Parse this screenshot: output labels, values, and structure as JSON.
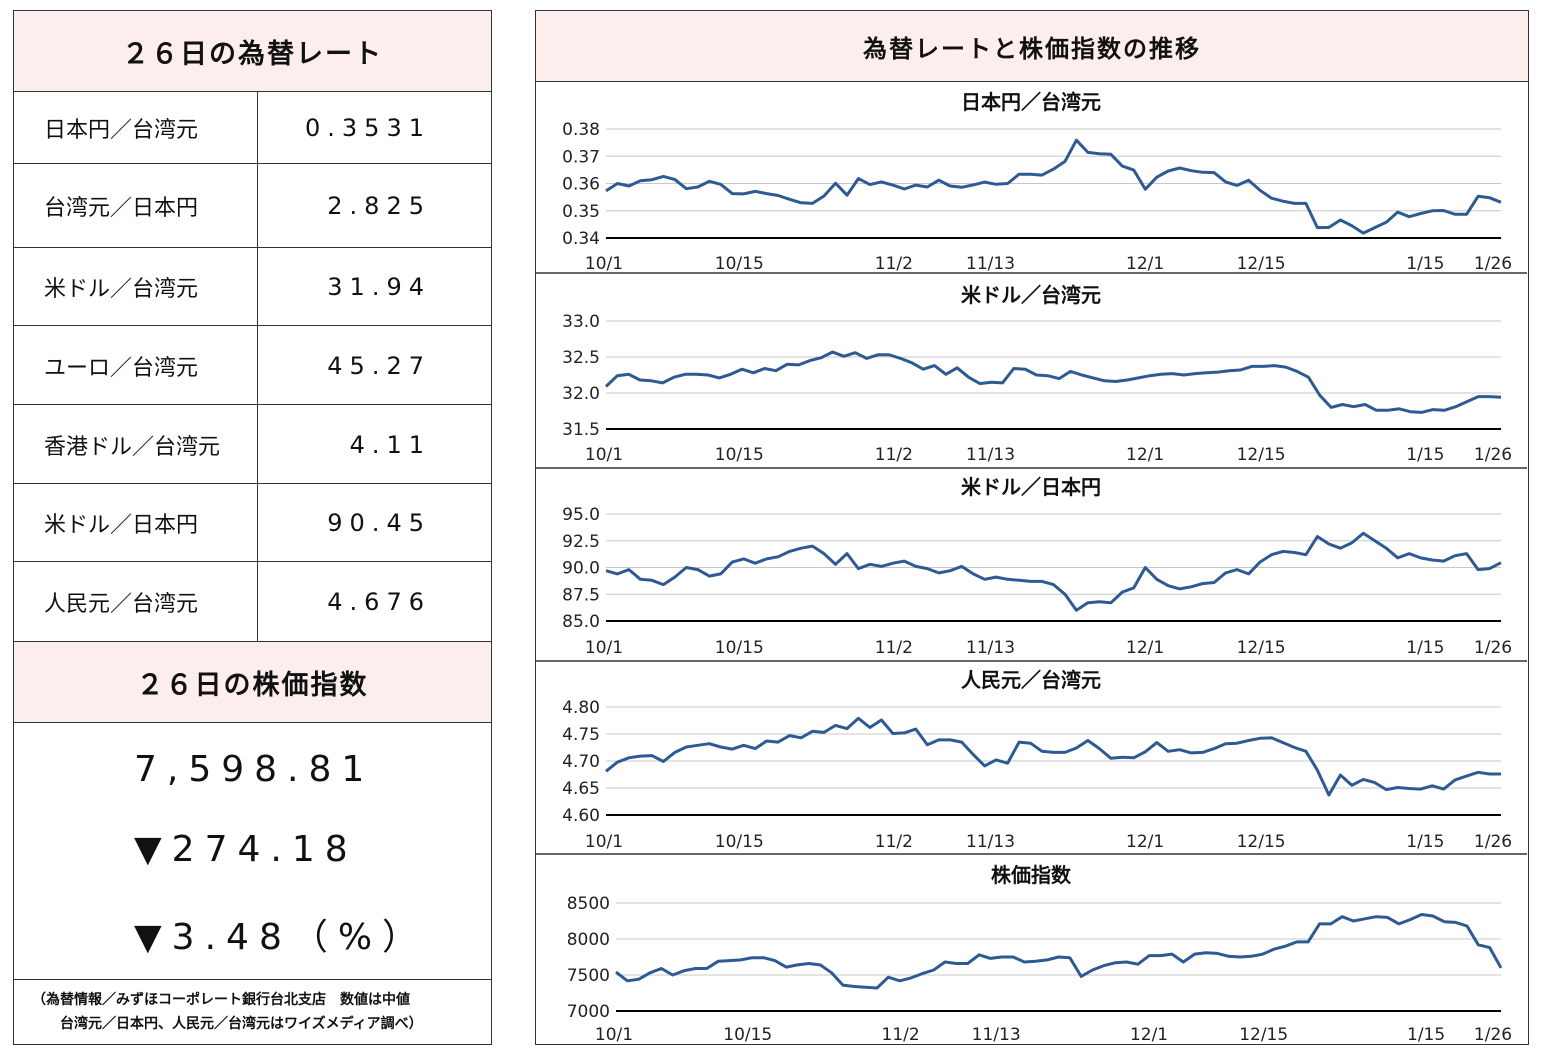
{
  "left": {
    "rates_title": "２６日の為替レート",
    "rates": [
      {
        "label": "日本円／台湾元",
        "value": "0.3531"
      },
      {
        "label": "台湾元／日本円",
        "value": "2.825"
      },
      {
        "label": "米ドル／台湾元",
        "value": "31.94"
      },
      {
        "label": "ユーロ／台湾元",
        "value": "45.27"
      },
      {
        "label": "香港ドル／台湾元",
        "value": "4.11"
      },
      {
        "label": "米ドル／日本円",
        "value": "90.45"
      },
      {
        "label": "人民元／台湾元",
        "value": "4.676"
      }
    ],
    "index_title": "２６日の株価指数",
    "index_value": "7,598.81",
    "index_change": "▼274.18",
    "index_change_pct": "▼3.48（%）",
    "note_line1": "（為替情報／みずほコーポレート銀行台北支店　数値は中値",
    "note_line2": "台湾元／日本円、人民元／台湾元はワイズメディア調べ）"
  },
  "right": {
    "title": "為替レートと株価指数の推移"
  },
  "colors": {
    "line": "#2e5a94",
    "header_bg": "#fdeeee",
    "grid": "#c8c8c8"
  },
  "chart_data": [
    {
      "type": "line",
      "title": "日本円／台湾元",
      "x_ticks": [
        "10/1",
        "10/15",
        "11/2",
        "11/13",
        "12/1",
        "12/15",
        "1/15",
        "1/26"
      ],
      "y_ticks": [
        "0.38",
        "0.37",
        "0.36",
        "0.35",
        "0.34"
      ],
      "ylim": [
        0.34,
        0.38
      ],
      "series": [
        {
          "values": [
            0.3573,
            0.36,
            0.3591,
            0.361,
            0.3614,
            0.3626,
            0.3615,
            0.3581,
            0.3587,
            0.3608,
            0.3597,
            0.3563,
            0.3562,
            0.3571,
            0.3563,
            0.3556,
            0.3542,
            0.3529,
            0.3527,
            0.3554,
            0.3601,
            0.3557,
            0.3618,
            0.3596,
            0.3606,
            0.3594,
            0.358,
            0.3594,
            0.3587,
            0.3612,
            0.3591,
            0.3586,
            0.3595,
            0.3605,
            0.3597,
            0.36,
            0.3634,
            0.3634,
            0.3631,
            0.3653,
            0.3681,
            0.3759,
            0.3714,
            0.3709,
            0.3707,
            0.3664,
            0.3649,
            0.3579,
            0.3623,
            0.3646,
            0.3657,
            0.3647,
            0.3641,
            0.364,
            0.3606,
            0.3593,
            0.3612,
            0.3575,
            0.3546,
            0.3535,
            0.3527,
            0.3527,
            0.3438,
            0.3439,
            0.3466,
            0.3445,
            0.3418,
            0.3438,
            0.3458,
            0.3495,
            0.3478,
            0.349,
            0.35,
            0.3501,
            0.3487,
            0.3487,
            0.3553,
            0.3548,
            0.3531
          ]
        }
      ]
    },
    {
      "type": "line",
      "title": "米ドル／台湾元",
      "x_ticks": [
        "10/1",
        "10/15",
        "11/2",
        "11/13",
        "12/1",
        "12/15",
        "1/15",
        "1/26"
      ],
      "y_ticks": [
        "33.0",
        "32.5",
        "32.0",
        "31.5"
      ],
      "ylim": [
        31.5,
        33.0
      ],
      "series": [
        {
          "values": [
            32.09,
            32.24,
            32.26,
            32.18,
            32.17,
            32.14,
            32.22,
            32.26,
            32.26,
            32.25,
            32.21,
            32.26,
            32.33,
            32.28,
            32.34,
            32.31,
            32.4,
            32.39,
            32.45,
            32.49,
            32.57,
            32.51,
            32.56,
            32.48,
            32.53,
            32.53,
            32.48,
            32.42,
            32.33,
            32.38,
            32.26,
            32.35,
            32.22,
            32.13,
            32.15,
            32.14,
            32.34,
            32.33,
            32.25,
            32.24,
            32.2,
            32.3,
            32.25,
            32.21,
            32.17,
            32.16,
            32.18,
            32.21,
            32.24,
            32.26,
            32.27,
            32.25,
            32.27,
            32.28,
            32.29,
            32.31,
            32.32,
            32.37,
            32.37,
            32.38,
            32.36,
            32.3,
            32.22,
            31.97,
            31.8,
            31.84,
            31.81,
            31.84,
            31.76,
            31.76,
            31.78,
            31.74,
            31.73,
            31.77,
            31.76,
            31.81,
            31.88,
            31.95,
            31.95,
            31.94
          ]
        }
      ]
    },
    {
      "type": "line",
      "title": "米ドル／日本円",
      "x_ticks": [
        "10/1",
        "10/15",
        "11/2",
        "11/13",
        "12/1",
        "12/15",
        "1/15",
        "1/26"
      ],
      "y_ticks": [
        "95.0",
        "92.5",
        "90.0",
        "87.5",
        "85.0"
      ],
      "ylim": [
        85.0,
        95.0
      ],
      "series": [
        {
          "values": [
            89.7,
            89.4,
            89.8,
            88.9,
            88.8,
            88.4,
            89.1,
            90.0,
            89.8,
            89.2,
            89.4,
            90.5,
            90.8,
            90.4,
            90.8,
            91.0,
            91.5,
            91.8,
            92.0,
            91.3,
            90.3,
            91.3,
            89.9,
            90.3,
            90.1,
            90.4,
            90.6,
            90.1,
            89.9,
            89.5,
            89.7,
            90.1,
            89.4,
            88.9,
            89.1,
            88.9,
            88.8,
            88.7,
            88.7,
            88.4,
            87.5,
            86.0,
            86.7,
            86.8,
            86.7,
            87.7,
            88.1,
            90.0,
            88.9,
            88.3,
            88.0,
            88.2,
            88.5,
            88.6,
            89.5,
            89.8,
            89.4,
            90.5,
            91.2,
            91.5,
            91.4,
            91.2,
            92.9,
            92.2,
            91.8,
            92.3,
            93.2,
            92.5,
            91.8,
            90.9,
            91.3,
            90.9,
            90.7,
            90.6,
            91.1,
            91.3,
            89.8,
            89.9,
            90.45
          ]
        }
      ]
    },
    {
      "type": "line",
      "title": "人民元／台湾元",
      "x_ticks": [
        "10/1",
        "10/15",
        "11/2",
        "11/13",
        "12/1",
        "12/15",
        "1/15",
        "1/26"
      ],
      "y_ticks": [
        "4.80",
        "4.75",
        "4.70",
        "4.65",
        "4.60"
      ],
      "ylim": [
        4.6,
        4.8
      ],
      "series": [
        {
          "values": [
            4.681,
            4.698,
            4.706,
            4.709,
            4.71,
            4.699,
            4.716,
            4.726,
            4.729,
            4.732,
            4.726,
            4.722,
            4.729,
            4.723,
            4.737,
            4.735,
            4.747,
            4.743,
            4.755,
            4.753,
            4.766,
            4.76,
            4.779,
            4.762,
            4.776,
            4.751,
            4.752,
            4.759,
            4.73,
            4.739,
            4.739,
            4.735,
            4.712,
            4.691,
            4.702,
            4.696,
            4.735,
            4.733,
            4.718,
            4.716,
            4.716,
            4.724,
            4.738,
            4.723,
            4.705,
            4.707,
            4.706,
            4.717,
            4.734,
            4.718,
            4.721,
            4.715,
            4.716,
            4.723,
            4.732,
            4.733,
            4.738,
            4.742,
            4.743,
            4.734,
            4.725,
            4.718,
            4.683,
            4.637,
            4.674,
            4.655,
            4.666,
            4.66,
            4.647,
            4.651,
            4.649,
            4.648,
            4.654,
            4.648,
            4.665,
            4.672,
            4.679,
            4.676,
            4.676
          ]
        }
      ]
    },
    {
      "type": "line",
      "title": "株価指数",
      "x_ticks": [
        "10/1",
        "10/15",
        "11/2",
        "11/13",
        "12/1",
        "12/15",
        "1/15",
        "1/26"
      ],
      "y_ticks": [
        "8500",
        "8000",
        "7500",
        "7000"
      ],
      "ylim": [
        7000,
        8500
      ],
      "series": [
        {
          "values": [
            7540,
            7420,
            7440,
            7530,
            7590,
            7500,
            7560,
            7590,
            7590,
            7690,
            7700,
            7710,
            7740,
            7740,
            7700,
            7610,
            7640,
            7660,
            7640,
            7530,
            7360,
            7340,
            7330,
            7320,
            7470,
            7420,
            7460,
            7520,
            7570,
            7680,
            7660,
            7660,
            7780,
            7730,
            7750,
            7750,
            7680,
            7690,
            7710,
            7750,
            7740,
            7480,
            7570,
            7630,
            7670,
            7680,
            7650,
            7770,
            7770,
            7790,
            7680,
            7790,
            7810,
            7800,
            7760,
            7750,
            7760,
            7790,
            7860,
            7900,
            7960,
            7960,
            8210,
            8210,
            8310,
            8250,
            8280,
            8310,
            8300,
            8210,
            8270,
            8340,
            8320,
            8240,
            8230,
            8180,
            7920,
            7880,
            7598.81
          ]
        }
      ]
    }
  ]
}
